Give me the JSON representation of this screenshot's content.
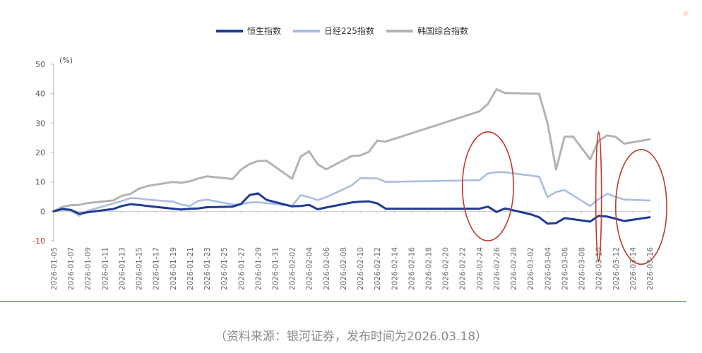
{
  "chart_data": {
    "type": "line",
    "title": "",
    "ylabel": "(%)",
    "xlabel": "",
    "ylim": [
      -10,
      50
    ],
    "yticks": [
      -10,
      0,
      10,
      20,
      30,
      40,
      50
    ],
    "x": [
      "2026-01-05",
      "2026-01-06",
      "2026-01-07",
      "2026-01-08",
      "2026-01-09",
      "2026-01-10",
      "2026-01-11",
      "2026-01-12",
      "2026-01-13",
      "2026-01-14",
      "2026-01-15",
      "2026-01-16",
      "2026-01-17",
      "2026-01-18",
      "2026-01-19",
      "2026-01-20",
      "2026-01-21",
      "2026-01-22",
      "2026-01-23",
      "2026-01-24",
      "2026-01-25",
      "2026-01-26",
      "2026-01-27",
      "2026-01-28",
      "2026-01-29",
      "2026-01-30",
      "2026-01-31",
      "2026-02-01",
      "2026-02-02",
      "2026-02-03",
      "2026-02-04",
      "2026-02-05",
      "2026-02-06",
      "2026-02-07",
      "2026-02-08",
      "2026-02-09",
      "2026-02-10",
      "2026-02-11",
      "2026-02-12",
      "2026-02-13",
      "2026-02-14",
      "2026-02-15",
      "2026-02-16",
      "2026-02-17",
      "2026-02-18",
      "2026-02-19",
      "2026-02-20",
      "2026-02-21",
      "2026-02-22",
      "2026-02-23",
      "2026-02-24",
      "2026-02-25",
      "2026-02-26",
      "2026-02-27",
      "2026-02-28",
      "2026-03-01",
      "2026-03-02",
      "2026-03-03",
      "2026-03-04",
      "2026-03-05",
      "2026-03-06",
      "2026-03-07",
      "2026-03-08",
      "2026-03-09",
      "2026-03-10",
      "2026-03-11",
      "2026-03-12",
      "2026-03-13",
      "2026-03-14",
      "2026-03-15",
      "2026-03-16"
    ],
    "xticks": [
      "2026-01-05",
      "2026-01-07",
      "2026-01-09",
      "2026-01-11",
      "2026-01-13",
      "2026-01-15",
      "2026-01-17",
      "2026-01-19",
      "2026-01-21",
      "2026-01-23",
      "2026-01-25",
      "2026-01-27",
      "2026-01-29",
      "2026-01-31",
      "2026-02-02",
      "2026-02-04",
      "2026-02-06",
      "2026-02-08",
      "2026-02-10",
      "2026-02-12",
      "2026-02-14",
      "2026-02-16",
      "2026-02-18",
      "2026-02-20",
      "2026-02-22",
      "2026-02-24",
      "2026-02-26",
      "2026-02-28",
      "2026-03-02",
      "2026-03-04",
      "2026-03-06",
      "2026-03-08",
      "2026-03-10",
      "2026-03-12",
      "2026-03-14",
      "2026-03-16"
    ],
    "series": [
      {
        "name": "恒生指数",
        "color": "#1f3a93",
        "points": [
          [
            "2026-01-05",
            0
          ],
          [
            "2026-01-06",
            0.8
          ],
          [
            "2026-01-07",
            0.5
          ],
          [
            "2026-01-08",
            -0.8
          ],
          [
            "2026-01-09",
            -0.3
          ],
          [
            "2026-01-12",
            0.8
          ],
          [
            "2026-01-13",
            1.8
          ],
          [
            "2026-01-14",
            2.4
          ],
          [
            "2026-01-15",
            2.2
          ],
          [
            "2026-01-16",
            1.8
          ],
          [
            "2026-01-19",
            0.9
          ],
          [
            "2026-01-20",
            0.6
          ],
          [
            "2026-01-21",
            0.9
          ],
          [
            "2026-01-22",
            1.0
          ],
          [
            "2026-01-23",
            1.4
          ],
          [
            "2026-01-26",
            1.6
          ],
          [
            "2026-01-27",
            2.5
          ],
          [
            "2026-01-28",
            5.5
          ],
          [
            "2026-01-29",
            6.1
          ],
          [
            "2026-01-30",
            3.9
          ],
          [
            "2026-02-02",
            1.7
          ],
          [
            "2026-02-03",
            1.8
          ],
          [
            "2026-02-04",
            2.2
          ],
          [
            "2026-02-05",
            0.7
          ],
          [
            "2026-02-06",
            1.3
          ],
          [
            "2026-02-09",
            3.0
          ],
          [
            "2026-02-10",
            3.3
          ],
          [
            "2026-02-11",
            3.4
          ],
          [
            "2026-02-12",
            2.7
          ],
          [
            "2026-02-13",
            0.9
          ],
          [
            "2026-02-23",
            0.9
          ],
          [
            "2026-02-24",
            0.9
          ],
          [
            "2026-02-25",
            1.6
          ],
          [
            "2026-02-26",
            -0.2
          ],
          [
            "2026-02-27",
            1.0
          ],
          [
            "2026-03-02",
            -1.0
          ],
          [
            "2026-03-03",
            -2.0
          ],
          [
            "2026-03-04",
            -4.2
          ],
          [
            "2026-03-05",
            -4.0
          ],
          [
            "2026-03-06",
            -2.3
          ],
          [
            "2026-03-09",
            -3.5
          ],
          [
            "2026-03-10",
            -1.5
          ],
          [
            "2026-03-11",
            -1.8
          ],
          [
            "2026-03-12",
            -2.5
          ],
          [
            "2026-03-13",
            -3.3
          ],
          [
            "2026-03-16",
            -2.0
          ]
        ]
      },
      {
        "name": "日经225指数",
        "color": "#a9bde4",
        "points": [
          [
            "2026-01-05",
            0
          ],
          [
            "2026-01-06",
            0.6
          ],
          [
            "2026-01-07",
            0.3
          ],
          [
            "2026-01-08",
            -1.5
          ],
          [
            "2026-01-09",
            0.2
          ],
          [
            "2026-01-13",
            3.5
          ],
          [
            "2026-01-14",
            4.5
          ],
          [
            "2026-01-15",
            4.4
          ],
          [
            "2026-01-16",
            4.0
          ],
          [
            "2026-01-19",
            3.3
          ],
          [
            "2026-01-20",
            2.3
          ],
          [
            "2026-01-21",
            1.8
          ],
          [
            "2026-01-22",
            3.6
          ],
          [
            "2026-01-23",
            4.0
          ],
          [
            "2026-01-26",
            2.3
          ],
          [
            "2026-01-27",
            2.4
          ],
          [
            "2026-01-28",
            3.0
          ],
          [
            "2026-01-29",
            3.1
          ],
          [
            "2026-01-30",
            2.8
          ],
          [
            "2026-02-02",
            1.8
          ],
          [
            "2026-02-03",
            5.5
          ],
          [
            "2026-02-04",
            4.8
          ],
          [
            "2026-02-05",
            3.8
          ],
          [
            "2026-02-06",
            4.8
          ],
          [
            "2026-02-09",
            8.8
          ],
          [
            "2026-02-10",
            11.3
          ],
          [
            "2026-02-12",
            11.2
          ],
          [
            "2026-02-13",
            10.0
          ],
          [
            "2026-02-24",
            10.6
          ],
          [
            "2026-02-25",
            12.9
          ],
          [
            "2026-02-26",
            13.3
          ],
          [
            "2026-02-27",
            13.3
          ],
          [
            "2026-03-03",
            11.8
          ],
          [
            "2026-03-04",
            4.8
          ],
          [
            "2026-03-05",
            6.6
          ],
          [
            "2026-03-06",
            7.2
          ],
          [
            "2026-03-09",
            1.8
          ],
          [
            "2026-03-10",
            4.2
          ],
          [
            "2026-03-11",
            6.0
          ],
          [
            "2026-03-12",
            4.9
          ],
          [
            "2026-03-13",
            4.0
          ],
          [
            "2026-03-16",
            3.7
          ]
        ]
      },
      {
        "name": "韩国综合指数",
        "color": "#b3b3b3",
        "points": [
          [
            "2026-01-05",
            0
          ],
          [
            "2026-01-06",
            1.5
          ],
          [
            "2026-01-07",
            2.1
          ],
          [
            "2026-01-08",
            2.2
          ],
          [
            "2026-01-09",
            2.8
          ],
          [
            "2026-01-12",
            3.7
          ],
          [
            "2026-01-13",
            5.3
          ],
          [
            "2026-01-14",
            5.9
          ],
          [
            "2026-01-15",
            7.7
          ],
          [
            "2026-01-16",
            8.6
          ],
          [
            "2026-01-19",
            10.0
          ],
          [
            "2026-01-20",
            9.7
          ],
          [
            "2026-01-21",
            10.2
          ],
          [
            "2026-01-22",
            11.2
          ],
          [
            "2026-01-23",
            11.9
          ],
          [
            "2026-01-26",
            11.0
          ],
          [
            "2026-01-27",
            14.2
          ],
          [
            "2026-01-28",
            16.1
          ],
          [
            "2026-01-29",
            17.1
          ],
          [
            "2026-01-30",
            17.2
          ],
          [
            "2026-02-02",
            11.1
          ],
          [
            "2026-02-03",
            18.6
          ],
          [
            "2026-02-04",
            20.4
          ],
          [
            "2026-02-05",
            16.0
          ],
          [
            "2026-02-06",
            14.3
          ],
          [
            "2026-02-09",
            18.8
          ],
          [
            "2026-02-10",
            19.0
          ],
          [
            "2026-02-11",
            20.2
          ],
          [
            "2026-02-12",
            24.0
          ],
          [
            "2026-02-13",
            23.7
          ],
          [
            "2026-02-24",
            34.0
          ],
          [
            "2026-02-25",
            36.5
          ],
          [
            "2026-02-26",
            41.5
          ],
          [
            "2026-02-27",
            40.2
          ],
          [
            "2026-03-03",
            40.0
          ],
          [
            "2026-03-04",
            30.0
          ],
          [
            "2026-03-05",
            14.2
          ],
          [
            "2026-03-06",
            25.4
          ],
          [
            "2026-03-07",
            25.4
          ],
          [
            "2026-03-09",
            17.7
          ],
          [
            "2026-03-10",
            24.0
          ],
          [
            "2026-03-11",
            25.8
          ],
          [
            "2026-03-12",
            25.3
          ],
          [
            "2026-03-13",
            23.0
          ],
          [
            "2026-03-16",
            24.5
          ]
        ]
      }
    ],
    "legend_position": "top-center",
    "grid": false,
    "annotations": [
      {
        "shape": "ellipse",
        "color": "#c0392b",
        "x_from": "2026-02-22",
        "x_to": "2026-02-28",
        "y_from": -10,
        "y_to": 27
      },
      {
        "shape": "ellipse",
        "color": "#c0392b",
        "x_from": "2026-03-10",
        "x_to": "2026-03-10",
        "y_from": -17,
        "y_to": 27
      },
      {
        "shape": "ellipse",
        "color": "#c0392b",
        "x_from": "2026-03-12",
        "x_to": "2026-03-18",
        "y_from": -18,
        "y_to": 21
      }
    ]
  },
  "caption": "（资料来源：银河证券，发布时间为2026.03.18）"
}
